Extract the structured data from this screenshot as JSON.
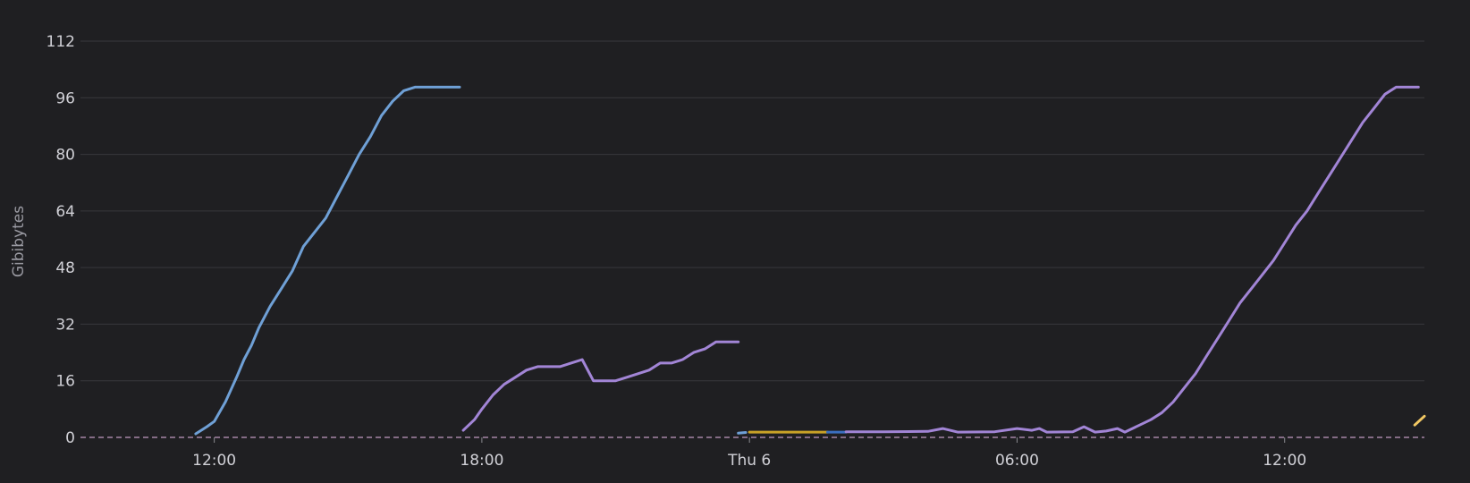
{
  "chart_data": {
    "type": "line",
    "title": "",
    "xlabel": "",
    "ylabel": "Gibibytes",
    "ylim": [
      0,
      112
    ],
    "yticks": [
      0,
      16,
      32,
      48,
      64,
      80,
      96,
      112
    ],
    "xlim": [
      "09:00",
      "15:08 (+1 day)"
    ],
    "xticks": [
      {
        "t": "12:00",
        "label": "12:00"
      },
      {
        "t": "18:00",
        "label": "18:00"
      },
      {
        "t": "00:00 (+1 day)",
        "label": "Thu 6"
      },
      {
        "t": "06:00 (+1 day)",
        "label": "06:00"
      },
      {
        "t": "12:00 (+1 day)",
        "label": "12:00"
      }
    ],
    "grid": true,
    "colors": {
      "background": "#1f1f22",
      "grid": "#38383d",
      "baseline": "#c8a0c8"
    },
    "series": [
      {
        "color": "#6fa0d6",
        "points": [
          [
            "11:35",
            1
          ],
          [
            "11:50",
            3
          ],
          [
            "12:00",
            4.5
          ],
          [
            "12:15",
            10
          ],
          [
            "12:30",
            17
          ],
          [
            "12:40",
            22
          ],
          [
            "12:50",
            26
          ],
          [
            "13:00",
            31
          ],
          [
            "13:15",
            37
          ],
          [
            "13:30",
            42
          ],
          [
            "13:45",
            47
          ],
          [
            "14:00",
            54
          ],
          [
            "14:15",
            58
          ],
          [
            "14:30",
            62
          ],
          [
            "14:45",
            68
          ],
          [
            "15:00",
            74
          ],
          [
            "15:15",
            80
          ],
          [
            "15:30",
            85
          ],
          [
            "15:45",
            91
          ],
          [
            "16:00",
            95
          ],
          [
            "16:15",
            98
          ],
          [
            "16:30",
            99
          ],
          [
            "17:00",
            99
          ],
          [
            "17:30",
            99
          ]
        ]
      },
      {
        "color": "#a285d6",
        "points": [
          [
            "17:35",
            2
          ],
          [
            "17:50",
            5
          ],
          [
            "18:00",
            8
          ],
          [
            "18:15",
            12
          ],
          [
            "18:30",
            15
          ],
          [
            "18:45",
            17
          ],
          [
            "19:00",
            19
          ],
          [
            "19:15",
            20
          ],
          [
            "19:30",
            20
          ],
          [
            "19:45",
            20
          ],
          [
            "20:00",
            21
          ],
          [
            "20:15",
            22
          ],
          [
            "20:30",
            16
          ],
          [
            "20:45",
            16
          ],
          [
            "21:00",
            16
          ],
          [
            "21:15",
            17
          ],
          [
            "21:30",
            18
          ],
          [
            "21:45",
            19
          ],
          [
            "22:00",
            21
          ],
          [
            "22:15",
            21
          ],
          [
            "22:30",
            22
          ],
          [
            "22:45",
            24
          ],
          [
            "23:00",
            25
          ],
          [
            "23:15",
            27
          ],
          [
            "23:30",
            27
          ],
          [
            "23:45",
            27
          ]
        ]
      },
      {
        "color": "#6fa0d6",
        "points": [
          [
            "23:45",
            1.2
          ],
          [
            "23:55",
            1.4
          ]
        ]
      },
      {
        "color": "#c9a227",
        "points": [
          [
            "00:00 (+1 day)",
            1.5
          ],
          [
            "01:00 (+1 day)",
            1.5
          ],
          [
            "01:45 (+1 day)",
            1.5
          ]
        ]
      },
      {
        "color": "#3a6fc0",
        "points": [
          [
            "01:45 (+1 day)",
            1.5
          ],
          [
            "02:10 (+1 day)",
            1.5
          ]
        ]
      },
      {
        "color": "#a285d6",
        "points": [
          [
            "02:10 (+1 day)",
            1.6
          ],
          [
            "03:00 (+1 day)",
            1.6
          ],
          [
            "04:00 (+1 day)",
            1.7
          ],
          [
            "04:20 (+1 day)",
            2.5
          ],
          [
            "04:40 (+1 day)",
            1.5
          ],
          [
            "05:30 (+1 day)",
            1.6
          ],
          [
            "06:00 (+1 day)",
            2.5
          ],
          [
            "06:20 (+1 day)",
            2
          ],
          [
            "06:30 (+1 day)",
            2.5
          ],
          [
            "06:40 (+1 day)",
            1.5
          ],
          [
            "07:15 (+1 day)",
            1.6
          ],
          [
            "07:30 (+1 day)",
            3
          ],
          [
            "07:45 (+1 day)",
            1.5
          ],
          [
            "08:00 (+1 day)",
            1.8
          ],
          [
            "08:15 (+1 day)",
            2.5
          ],
          [
            "08:25 (+1 day)",
            1.5
          ],
          [
            "08:45 (+1 day)",
            3.5
          ],
          [
            "09:00 (+1 day)",
            5
          ],
          [
            "09:15 (+1 day)",
            7
          ],
          [
            "09:30 (+1 day)",
            10
          ],
          [
            "09:45 (+1 day)",
            14
          ],
          [
            "10:00 (+1 day)",
            18
          ],
          [
            "10:15 (+1 day)",
            23
          ],
          [
            "10:30 (+1 day)",
            28
          ],
          [
            "10:45 (+1 day)",
            33
          ],
          [
            "11:00 (+1 day)",
            38
          ],
          [
            "11:15 (+1 day)",
            42
          ],
          [
            "11:30 (+1 day)",
            46
          ],
          [
            "11:45 (+1 day)",
            50
          ],
          [
            "12:00 (+1 day)",
            55
          ],
          [
            "12:15 (+1 day)",
            60
          ],
          [
            "12:30 (+1 day)",
            64
          ],
          [
            "12:45 (+1 day)",
            69
          ],
          [
            "13:00 (+1 day)",
            74
          ],
          [
            "13:15 (+1 day)",
            79
          ],
          [
            "13:30 (+1 day)",
            84
          ],
          [
            "13:45 (+1 day)",
            89
          ],
          [
            "14:00 (+1 day)",
            93
          ],
          [
            "14:15 (+1 day)",
            97
          ],
          [
            "14:30 (+1 day)",
            99
          ],
          [
            "15:00 (+1 day)",
            99
          ]
        ]
      },
      {
        "color": "#f2c863",
        "points": [
          [
            "14:55 (+1 day)",
            3.5
          ],
          [
            "15:08 (+1 day)",
            6
          ]
        ]
      }
    ]
  }
}
